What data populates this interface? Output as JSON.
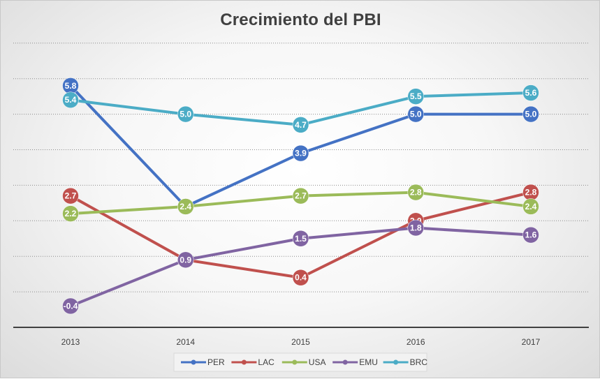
{
  "chart_data": {
    "type": "line",
    "title": "Crecimiento del PBI",
    "categories": [
      "2013",
      "2014",
      "2015",
      "2016",
      "2017"
    ],
    "ylim": [
      -1,
      7
    ],
    "grid": true,
    "legend_position": "bottom",
    "series": [
      {
        "name": "PER",
        "color": "#4472C4",
        "values": [
          5.8,
          2.4,
          3.9,
          5.0,
          5.0
        ]
      },
      {
        "name": "LAC",
        "color": "#C0504D",
        "values": [
          2.7,
          0.9,
          0.4,
          2.0,
          2.8
        ]
      },
      {
        "name": "USA",
        "color": "#9BBB59",
        "values": [
          2.2,
          2.4,
          2.7,
          2.8,
          2.4
        ]
      },
      {
        "name": "EMU",
        "color": "#8064A2",
        "values": [
          -0.4,
          0.9,
          1.5,
          1.8,
          1.6
        ]
      },
      {
        "name": "BRC",
        "color": "#4BACC6",
        "values": [
          5.4,
          5.0,
          4.7,
          5.5,
          5.6
        ]
      }
    ]
  }
}
